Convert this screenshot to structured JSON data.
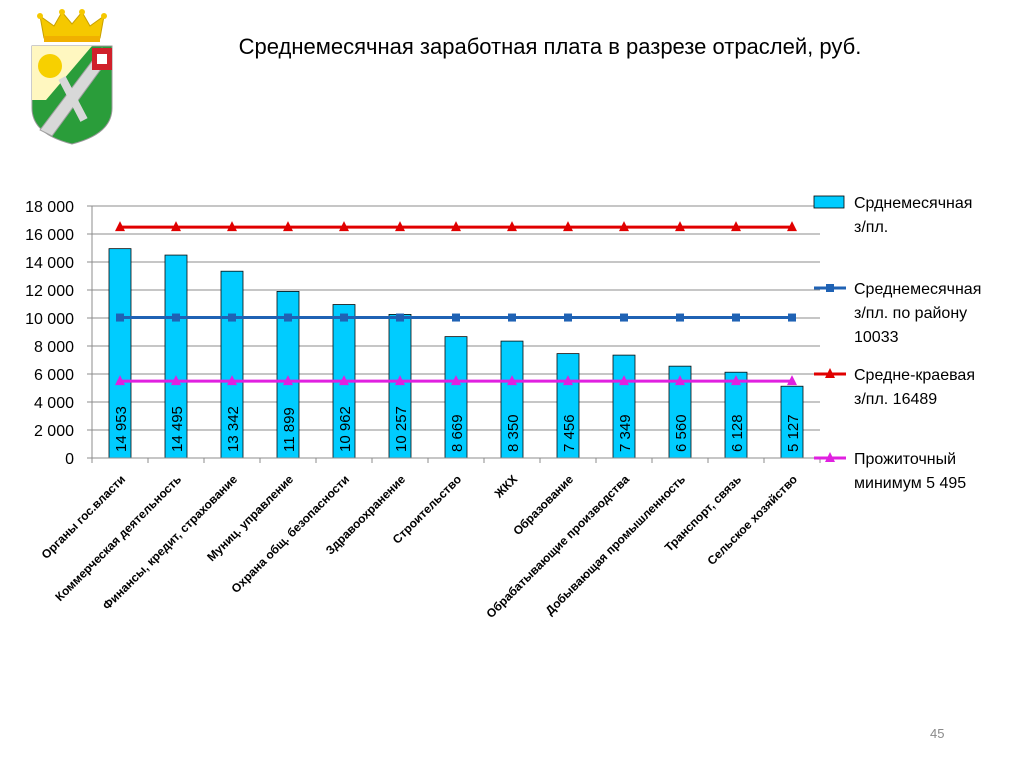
{
  "slide": {
    "title": "Среднемесячная заработная плата в разрезе отраслей, руб.",
    "page_number": "45",
    "logo": {
      "icon": "coat-of-arms-icon"
    }
  },
  "chart_data": {
    "type": "bar",
    "title": "",
    "xlabel": "",
    "ylabel": "",
    "ylim": [
      0,
      18000
    ],
    "yticks": [
      "0",
      "2 000",
      "4 000",
      "6 000",
      "8 000",
      "10 000",
      "12 000",
      "14 000",
      "16 000",
      "18 000"
    ],
    "ytick_values": [
      0,
      2000,
      4000,
      6000,
      8000,
      10000,
      12000,
      14000,
      16000,
      18000
    ],
    "grid": true,
    "legend_position": "right",
    "categories": [
      "Органы гос.власти",
      "Коммерческая деятельность",
      "Финансы, кредит, страхование",
      "Муниц. управление",
      "Охрана общ. безопасности",
      "Здравоохранение",
      "Строительство",
      "ЖКХ",
      "Образование",
      "Обрабатывающие производства",
      "Добывающая промышленность",
      "Транспорт, связь",
      "Сельское хозяйство"
    ],
    "bar_series": {
      "name": "Срднемесячная з/пл.",
      "values": [
        14953,
        14495,
        13342,
        11899,
        10962,
        10257,
        8669,
        8350,
        7456,
        7349,
        6560,
        6128,
        5127
      ],
      "labels": [
        "14 953",
        "14 495",
        "13 342",
        "11 899",
        "10 962",
        "10 257",
        "8 669",
        "8 350",
        "7 456",
        "7 349",
        "6 560",
        "6 128",
        "5 127"
      ],
      "color": "#00ccff"
    },
    "line_series": [
      {
        "name": "Среднемесячная з/пл. по району 10033",
        "value": 10033,
        "color": "#1f62b4",
        "marker": "square"
      },
      {
        "name": "Средне-краевая з/пл. 16489",
        "value": 16489,
        "color": "#e00000",
        "marker": "triangle"
      },
      {
        "name": "Прожиточный минимум 5 495",
        "value": 5495,
        "color": "#e020e0",
        "marker": "triangle"
      }
    ],
    "legend": [
      {
        "lines": [
          "Срднемесячная",
          "з/пл."
        ]
      },
      {
        "lines": [
          "Среднемесячная",
          "з/пл. по району",
          "10033"
        ]
      },
      {
        "lines": [
          "Средне-краевая",
          "з/пл. 16489"
        ]
      },
      {
        "lines": [
          "Прожиточный",
          "минимум 5 495"
        ]
      }
    ]
  }
}
